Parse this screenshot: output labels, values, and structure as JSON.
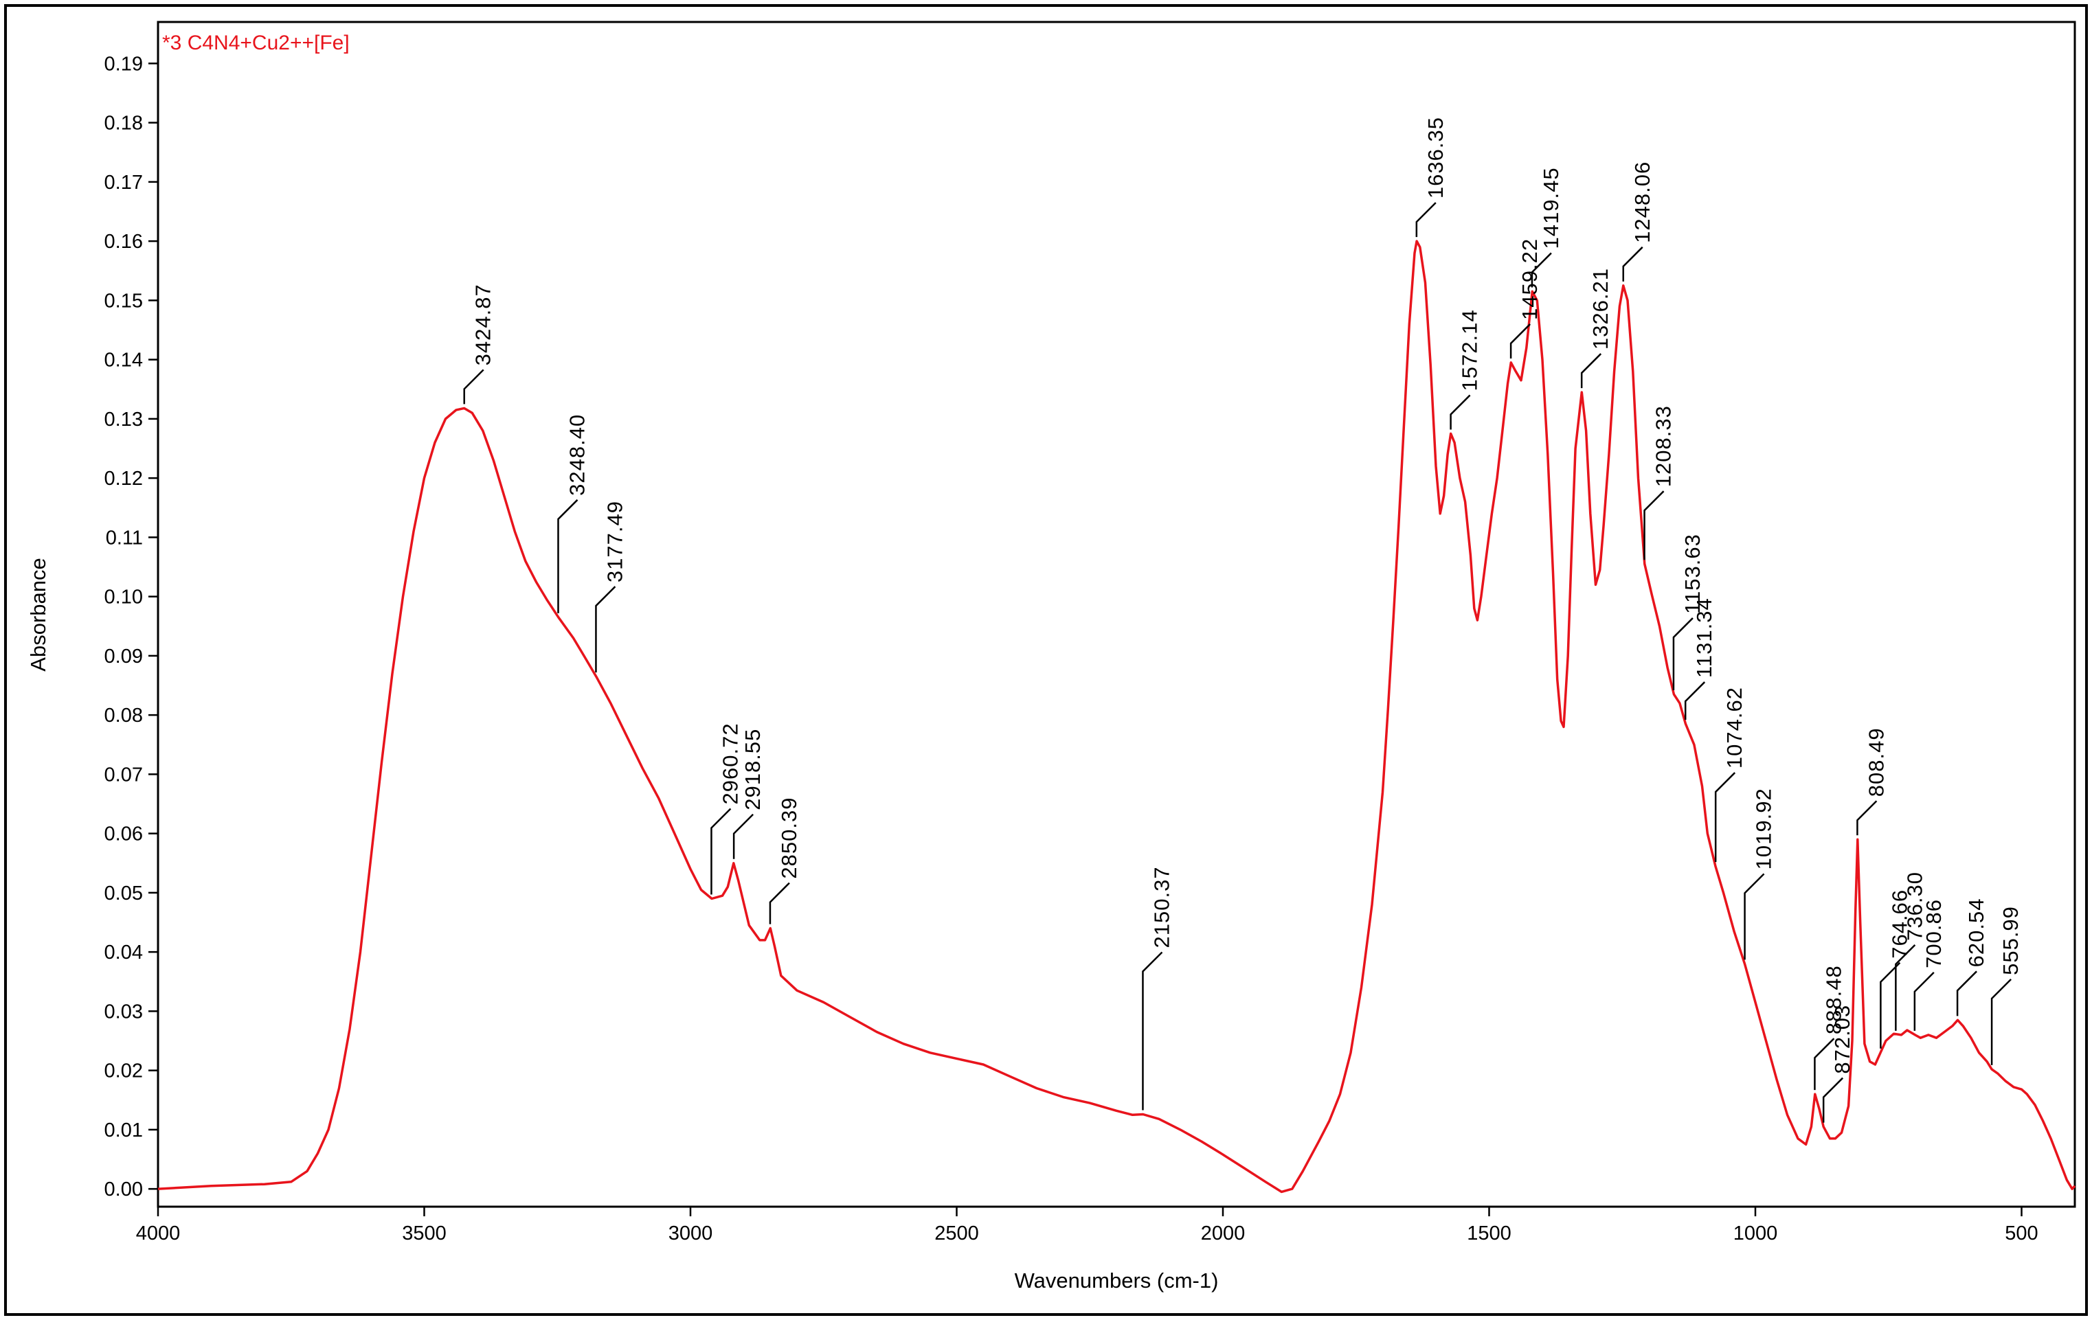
{
  "chart_data": {
    "type": "line",
    "xlabel": "Wavenumbers (cm-1)",
    "ylabel": "Absorbance",
    "xlim": [
      4000,
      400
    ],
    "ylim": [
      -0.003,
      0.197
    ],
    "x_reversed": true,
    "x_ticks": [
      4000,
      3500,
      3000,
      2500,
      2000,
      1500,
      1000,
      500
    ],
    "y_ticks": [
      0.0,
      0.01,
      0.02,
      0.03,
      0.04,
      0.05,
      0.06,
      0.07,
      0.08,
      0.09,
      0.1,
      0.11,
      0.12,
      0.13,
      0.14,
      0.15,
      0.16,
      0.17,
      0.18,
      0.19
    ],
    "x_tick_labels": [
      "4000",
      "3500",
      "3000",
      "2500",
      "2000",
      "1500",
      "1000",
      "500"
    ],
    "y_tick_labels": [
      "0.00",
      "0.01",
      "0.02",
      "0.03",
      "0.04",
      "0.05",
      "0.06",
      "0.07",
      "0.08",
      "0.09",
      "0.10",
      "0.11",
      "0.12",
      "0.13",
      "0.14",
      "0.15",
      "0.16",
      "0.17",
      "0.18",
      "0.19"
    ],
    "grid": false,
    "series": [
      {
        "name": "*3 C4N4+Cu2++[Fe]",
        "color": "#e8141c",
        "points": [
          [
            4000,
            0.0
          ],
          [
            3900,
            0.0005
          ],
          [
            3800,
            0.0008
          ],
          [
            3750,
            0.0012
          ],
          [
            3720,
            0.003
          ],
          [
            3700,
            0.006
          ],
          [
            3680,
            0.01
          ],
          [
            3660,
            0.017
          ],
          [
            3640,
            0.027
          ],
          [
            3620,
            0.04
          ],
          [
            3600,
            0.056
          ],
          [
            3580,
            0.072
          ],
          [
            3560,
            0.087
          ],
          [
            3540,
            0.1
          ],
          [
            3520,
            0.111
          ],
          [
            3500,
            0.12
          ],
          [
            3480,
            0.126
          ],
          [
            3460,
            0.13
          ],
          [
            3440,
            0.1315
          ],
          [
            3425,
            0.1318
          ],
          [
            3410,
            0.131
          ],
          [
            3390,
            0.128
          ],
          [
            3370,
            0.123
          ],
          [
            3350,
            0.117
          ],
          [
            3330,
            0.111
          ],
          [
            3310,
            0.106
          ],
          [
            3290,
            0.1025
          ],
          [
            3270,
            0.0995
          ],
          [
            3248,
            0.0965
          ],
          [
            3220,
            0.093
          ],
          [
            3200,
            0.09
          ],
          [
            3177,
            0.0865
          ],
          [
            3150,
            0.082
          ],
          [
            3120,
            0.0765
          ],
          [
            3090,
            0.071
          ],
          [
            3060,
            0.066
          ],
          [
            3030,
            0.06
          ],
          [
            3000,
            0.054
          ],
          [
            2980,
            0.0505
          ],
          [
            2960,
            0.049
          ],
          [
            2940,
            0.0495
          ],
          [
            2930,
            0.051
          ],
          [
            2919,
            0.055
          ],
          [
            2910,
            0.052
          ],
          [
            2890,
            0.0445
          ],
          [
            2870,
            0.042
          ],
          [
            2860,
            0.042
          ],
          [
            2850,
            0.044
          ],
          [
            2842,
            0.041
          ],
          [
            2830,
            0.036
          ],
          [
            2800,
            0.0335
          ],
          [
            2750,
            0.0315
          ],
          [
            2700,
            0.029
          ],
          [
            2650,
            0.0265
          ],
          [
            2600,
            0.0245
          ],
          [
            2550,
            0.023
          ],
          [
            2500,
            0.022
          ],
          [
            2450,
            0.021
          ],
          [
            2400,
            0.019
          ],
          [
            2350,
            0.017
          ],
          [
            2300,
            0.0155
          ],
          [
            2250,
            0.0145
          ],
          [
            2200,
            0.0132
          ],
          [
            2170,
            0.0125
          ],
          [
            2150,
            0.0126
          ],
          [
            2120,
            0.0118
          ],
          [
            2080,
            0.01
          ],
          [
            2040,
            0.008
          ],
          [
            2000,
            0.0058
          ],
          [
            1960,
            0.0035
          ],
          [
            1920,
            0.0012
          ],
          [
            1890,
            -0.0005
          ],
          [
            1870,
            0.0
          ],
          [
            1850,
            0.003
          ],
          [
            1820,
            0.008
          ],
          [
            1800,
            0.0115
          ],
          [
            1780,
            0.016
          ],
          [
            1760,
            0.023
          ],
          [
            1740,
            0.034
          ],
          [
            1720,
            0.048
          ],
          [
            1700,
            0.067
          ],
          [
            1690,
            0.081
          ],
          [
            1680,
            0.096
          ],
          [
            1670,
            0.112
          ],
          [
            1660,
            0.129
          ],
          [
            1650,
            0.146
          ],
          [
            1640,
            0.158
          ],
          [
            1636,
            0.16
          ],
          [
            1630,
            0.159
          ],
          [
            1620,
            0.153
          ],
          [
            1610,
            0.139
          ],
          [
            1600,
            0.122
          ],
          [
            1592,
            0.114
          ],
          [
            1585,
            0.117
          ],
          [
            1578,
            0.124
          ],
          [
            1572,
            0.1275
          ],
          [
            1565,
            0.126
          ],
          [
            1555,
            0.12
          ],
          [
            1545,
            0.116
          ],
          [
            1535,
            0.107
          ],
          [
            1528,
            0.098
          ],
          [
            1522,
            0.096
          ],
          [
            1515,
            0.1
          ],
          [
            1505,
            0.107
          ],
          [
            1495,
            0.114
          ],
          [
            1485,
            0.12
          ],
          [
            1475,
            0.128
          ],
          [
            1465,
            0.136
          ],
          [
            1459,
            0.1395
          ],
          [
            1450,
            0.138
          ],
          [
            1440,
            0.1365
          ],
          [
            1430,
            0.142
          ],
          [
            1419,
            0.1515
          ],
          [
            1410,
            0.15
          ],
          [
            1400,
            0.14
          ],
          [
            1390,
            0.124
          ],
          [
            1380,
            0.104
          ],
          [
            1372,
            0.086
          ],
          [
            1365,
            0.079
          ],
          [
            1360,
            0.078
          ],
          [
            1352,
            0.09
          ],
          [
            1345,
            0.108
          ],
          [
            1338,
            0.125
          ],
          [
            1326,
            0.1345
          ],
          [
            1318,
            0.128
          ],
          [
            1310,
            0.114
          ],
          [
            1300,
            0.102
          ],
          [
            1292,
            0.1045
          ],
          [
            1285,
            0.112
          ],
          [
            1275,
            0.124
          ],
          [
            1265,
            0.138
          ],
          [
            1255,
            0.149
          ],
          [
            1248,
            0.1525
          ],
          [
            1240,
            0.15
          ],
          [
            1230,
            0.138
          ],
          [
            1220,
            0.12
          ],
          [
            1208,
            0.1055
          ],
          [
            1195,
            0.1005
          ],
          [
            1180,
            0.095
          ],
          [
            1165,
            0.088
          ],
          [
            1153,
            0.0835
          ],
          [
            1142,
            0.082
          ],
          [
            1131,
            0.0785
          ],
          [
            1115,
            0.075
          ],
          [
            1100,
            0.068
          ],
          [
            1090,
            0.06
          ],
          [
            1075,
            0.0545
          ],
          [
            1060,
            0.05
          ],
          [
            1040,
            0.0435
          ],
          [
            1020,
            0.038
          ],
          [
            1000,
            0.0315
          ],
          [
            980,
            0.025
          ],
          [
            960,
            0.0185
          ],
          [
            940,
            0.0125
          ],
          [
            920,
            0.0085
          ],
          [
            905,
            0.0075
          ],
          [
            895,
            0.0105
          ],
          [
            888,
            0.016
          ],
          [
            880,
            0.0135
          ],
          [
            872,
            0.0105
          ],
          [
            860,
            0.0085
          ],
          [
            850,
            0.0085
          ],
          [
            838,
            0.0095
          ],
          [
            825,
            0.014
          ],
          [
            818,
            0.025
          ],
          [
            812,
            0.047
          ],
          [
            808,
            0.059
          ],
          [
            803,
            0.045
          ],
          [
            795,
            0.0245
          ],
          [
            785,
            0.0215
          ],
          [
            775,
            0.021
          ],
          [
            765,
            0.023
          ],
          [
            755,
            0.025
          ],
          [
            740,
            0.0262
          ],
          [
            726,
            0.026
          ],
          [
            715,
            0.0268
          ],
          [
            700,
            0.026
          ],
          [
            690,
            0.0255
          ],
          [
            675,
            0.026
          ],
          [
            660,
            0.0255
          ],
          [
            645,
            0.0265
          ],
          [
            630,
            0.0275
          ],
          [
            620,
            0.0285
          ],
          [
            610,
            0.0275
          ],
          [
            595,
            0.0255
          ],
          [
            580,
            0.023
          ],
          [
            565,
            0.0215
          ],
          [
            556,
            0.0202
          ],
          [
            545,
            0.0195
          ],
          [
            530,
            0.0182
          ],
          [
            515,
            0.0172
          ],
          [
            500,
            0.0168
          ],
          [
            490,
            0.016
          ],
          [
            475,
            0.0142
          ],
          [
            460,
            0.0115
          ],
          [
            445,
            0.0085
          ],
          [
            430,
            0.005
          ],
          [
            415,
            0.0015
          ],
          [
            405,
            0.0
          ],
          [
            400,
            0.0005
          ]
        ]
      }
    ],
    "peak_labels": [
      {
        "label": "3424.87",
        "x": 3424.87,
        "y": 0.1318
      },
      {
        "label": "3248.40",
        "x": 3248.4,
        "y": 0.0965
      },
      {
        "label": "3177.49",
        "x": 3177.49,
        "y": 0.0865
      },
      {
        "label": "2960.72",
        "x": 2960.72,
        "y": 0.049
      },
      {
        "label": "2918.55",
        "x": 2918.55,
        "y": 0.055
      },
      {
        "label": "2850.39",
        "x": 2850.39,
        "y": 0.044
      },
      {
        "label": "2150.37",
        "x": 2150.37,
        "y": 0.0126
      },
      {
        "label": "1636.35",
        "x": 1636.35,
        "y": 0.16
      },
      {
        "label": "1572.14",
        "x": 1572.14,
        "y": 0.1275
      },
      {
        "label": "1459.22",
        "x": 1459.22,
        "y": 0.1395
      },
      {
        "label": "1419.45",
        "x": 1419.45,
        "y": 0.1515
      },
      {
        "label": "1326.21",
        "x": 1326.21,
        "y": 0.1345
      },
      {
        "label": "1248.06",
        "x": 1248.06,
        "y": 0.1525
      },
      {
        "label": "1208.33",
        "x": 1208.33,
        "y": 0.1055
      },
      {
        "label": "1153.63",
        "x": 1153.63,
        "y": 0.0835
      },
      {
        "label": "1131.34",
        "x": 1131.34,
        "y": 0.0785
      },
      {
        "label": "1074.62",
        "x": 1074.62,
        "y": 0.0545
      },
      {
        "label": "1019.92",
        "x": 1019.92,
        "y": 0.038
      },
      {
        "label": "888.48",
        "x": 888.48,
        "y": 0.016
      },
      {
        "label": "872.03",
        "x": 872.03,
        "y": 0.0105
      },
      {
        "label": "808.49",
        "x": 808.49,
        "y": 0.059
      },
      {
        "label": "764.66",
        "x": 764.66,
        "y": 0.023
      },
      {
        "label": "736.30",
        "x": 736.3,
        "y": 0.026
      },
      {
        "label": "700.86",
        "x": 700.86,
        "y": 0.026
      },
      {
        "label": "620.54",
        "x": 620.54,
        "y": 0.0285
      },
      {
        "label": "555.99",
        "x": 555.99,
        "y": 0.0202
      }
    ]
  }
}
